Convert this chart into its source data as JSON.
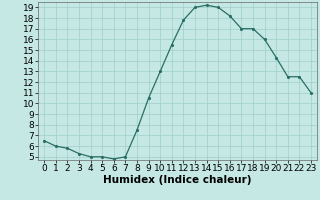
{
  "x": [
    0,
    1,
    2,
    3,
    4,
    5,
    6,
    7,
    8,
    9,
    10,
    11,
    12,
    13,
    14,
    15,
    16,
    17,
    18,
    19,
    20,
    21,
    22,
    23
  ],
  "y": [
    6.5,
    6.0,
    5.8,
    5.3,
    5.0,
    5.0,
    4.8,
    5.0,
    7.5,
    10.5,
    13.0,
    15.5,
    17.8,
    19.0,
    19.2,
    19.0,
    18.2,
    17.0,
    17.0,
    16.0,
    14.3,
    12.5,
    12.5,
    11.0
  ],
  "xlabel": "Humidex (Indice chaleur)",
  "ylim_min": 4.7,
  "ylim_max": 19.5,
  "xlim_min": -0.5,
  "xlim_max": 23.5,
  "yticks": [
    5,
    6,
    7,
    8,
    9,
    10,
    11,
    12,
    13,
    14,
    15,
    16,
    17,
    18,
    19
  ],
  "xticks": [
    0,
    1,
    2,
    3,
    4,
    5,
    6,
    7,
    8,
    9,
    10,
    11,
    12,
    13,
    14,
    15,
    16,
    17,
    18,
    19,
    20,
    21,
    22,
    23
  ],
  "line_color": "#2a6e65",
  "marker_color": "#2a6e65",
  "bg_color": "#c5e8e5",
  "grid_color": "#9fcfcb",
  "xlabel_fontsize": 7.5,
  "tick_fontsize": 6.5
}
